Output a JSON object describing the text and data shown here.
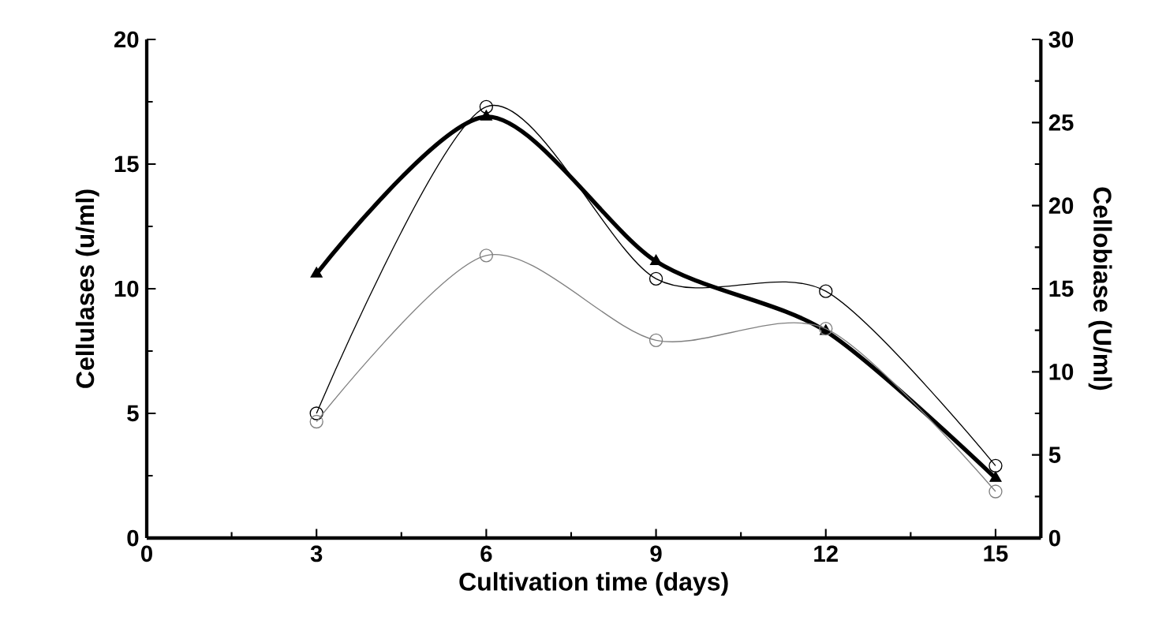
{
  "chart_data": {
    "type": "line",
    "xlabel": "Cultivation time (days)",
    "ylabel": "Cellulases (u/ml)",
    "y2label": "Cellobiase (U/ml)",
    "x": [
      3,
      6,
      9,
      12,
      15
    ],
    "series": [
      {
        "color": "#000000",
        "values": [
          10.6,
          16.9,
          11.1,
          8.3,
          2.4
        ],
        "marker": "triangle"
      },
      {
        "color": "#000000",
        "values": [
          5.0,
          17.3,
          10.4,
          9.9,
          2.9
        ],
        "marker": "circle"
      },
      {
        "color": "#808080",
        "values": [
          7.0,
          17.0,
          11.9,
          12.6,
          2.8
        ],
        "marker": "circle",
        "axis": "y2"
      }
    ],
    "xlim": [
      0,
      15.8
    ],
    "xticks": [
      0,
      3,
      6,
      9,
      12,
      15
    ],
    "ylim": [
      0,
      20
    ],
    "yticks": [
      0,
      5,
      10,
      15,
      20
    ],
    "y2lim": [
      0,
      30
    ],
    "y2ticks": [
      0,
      5,
      10,
      15,
      20,
      25,
      30
    ]
  }
}
